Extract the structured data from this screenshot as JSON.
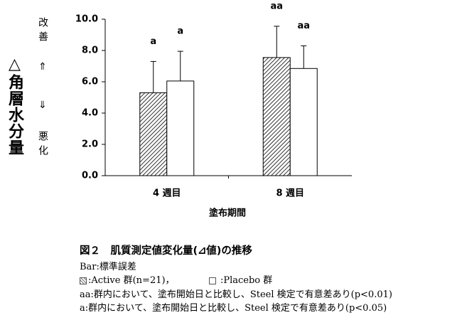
{
  "chart_data": {
    "type": "bar",
    "ylabel": "△角層水分量",
    "up_label": "改善 ⇑",
    "down_label": "⇓ 悪化",
    "xlabel": "塗布期間",
    "categories": [
      "4 週目",
      "8 週目"
    ],
    "series": [
      {
        "name": ":Active 群(n=21)，",
        "color": "#000000",
        "pattern": "hatch",
        "values": [
          5.3,
          7.55
        ],
        "errors": [
          2.0,
          2.0
        ],
        "significance": [
          "a",
          "aa"
        ]
      },
      {
        "name": " :Placebo 群",
        "color": "#ffffff",
        "pattern": "none",
        "values": [
          6.05,
          6.85
        ],
        "errors": [
          1.9,
          1.45
        ],
        "significance": [
          "a",
          "aa"
        ]
      }
    ],
    "ylim": [
      0,
      10
    ],
    "yticks": [
      {
        "value": 0,
        "label": "0.0"
      },
      {
        "value": 2,
        "label": "2.0"
      },
      {
        "value": 4,
        "label": "4.0"
      },
      {
        "value": 6,
        "label": "6.0"
      },
      {
        "value": 8,
        "label": "8.0"
      },
      {
        "value": 10,
        "label": "10.0"
      }
    ],
    "caption_title": "図２　肌質測定値変化量(⊿値)の推移",
    "notes": [
      "Bar:標準誤差",
      "aa:群内において、塗布開始日と比較し、Steel 検定で有意差あり(p<0.01)",
      "a:群内において、塗布開始日と比較し、Steel 検定で有意差あり(p<0.05)"
    ]
  }
}
